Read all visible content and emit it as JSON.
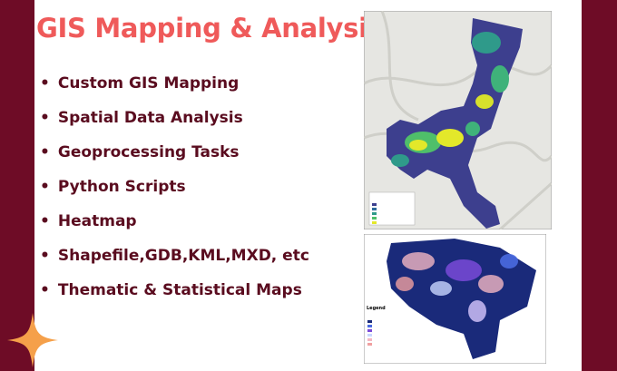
{
  "title": "GIS Mapping & Analysis",
  "services": [
    "Custom GIS Mapping",
    "Spatial Data Analysis",
    "Geoprocessing Tasks",
    "Python Scripts",
    "Heatmap",
    "Shapefile,GDB,KML,MXD, etc",
    "Thematic & Statistical Maps"
  ],
  "map2_legend": "Legend"
}
